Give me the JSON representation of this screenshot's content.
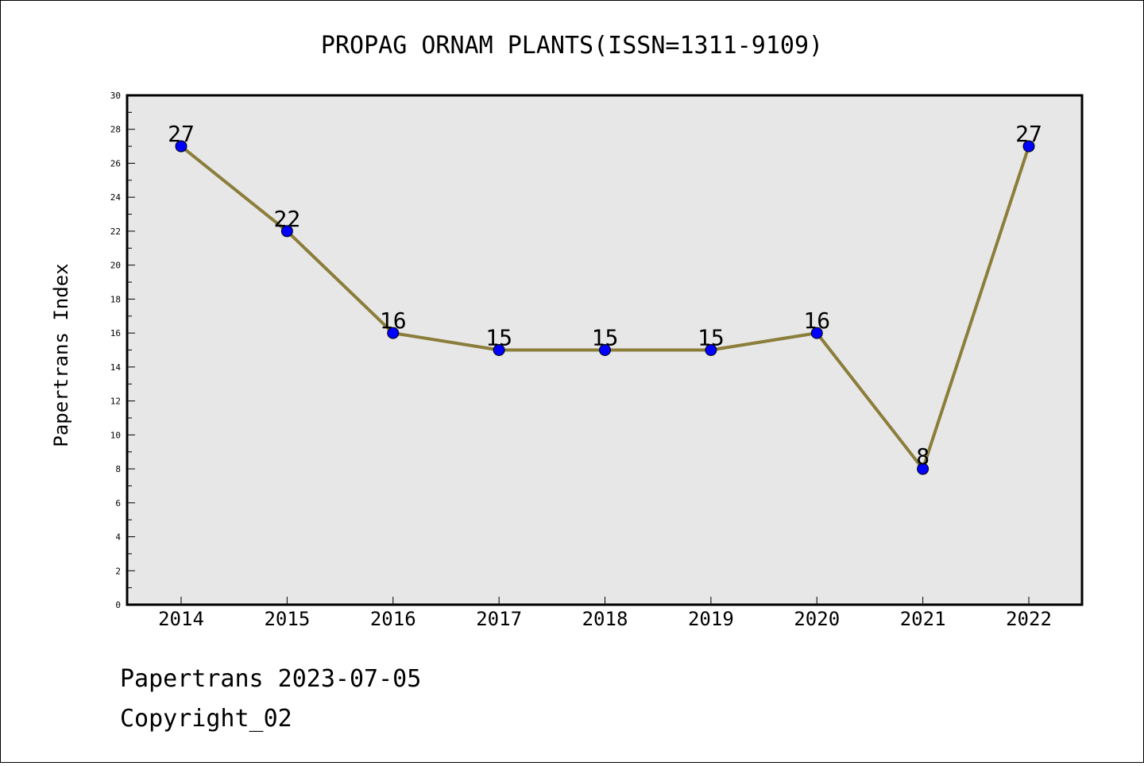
{
  "chart_data": {
    "type": "line",
    "title": "PROPAG ORNAM PLANTS(ISSN=1311-9109)",
    "ylabel": "Papertrans Index",
    "xlabel": "",
    "categories": [
      "2014",
      "2015",
      "2016",
      "2017",
      "2018",
      "2019",
      "2020",
      "2021",
      "2022"
    ],
    "values": [
      27,
      22,
      16,
      15,
      15,
      15,
      16,
      8,
      27
    ],
    "data_labels": [
      "27",
      "22",
      "16",
      "15",
      "15",
      "15",
      "16",
      "8",
      "27"
    ],
    "ylim": [
      0,
      30
    ],
    "yticks": [
      0,
      2,
      4,
      6,
      8,
      10,
      12,
      14,
      16,
      18,
      20,
      22,
      24,
      26,
      28,
      30
    ],
    "ytick_labels": [
      "0",
      "2",
      "4",
      "6",
      "8",
      "10",
      "12",
      "14",
      "16",
      "18",
      "20",
      "22",
      "24",
      "26",
      "28",
      "30"
    ],
    "line_color": "#8b7d3a",
    "marker_color": "#0000ff",
    "plot_background": "#e7e7e7",
    "grid": false,
    "legend": "none"
  },
  "footer": {
    "date_text": "Papertrans 2023-07-05",
    "copyright_text": "Copyright_02"
  }
}
